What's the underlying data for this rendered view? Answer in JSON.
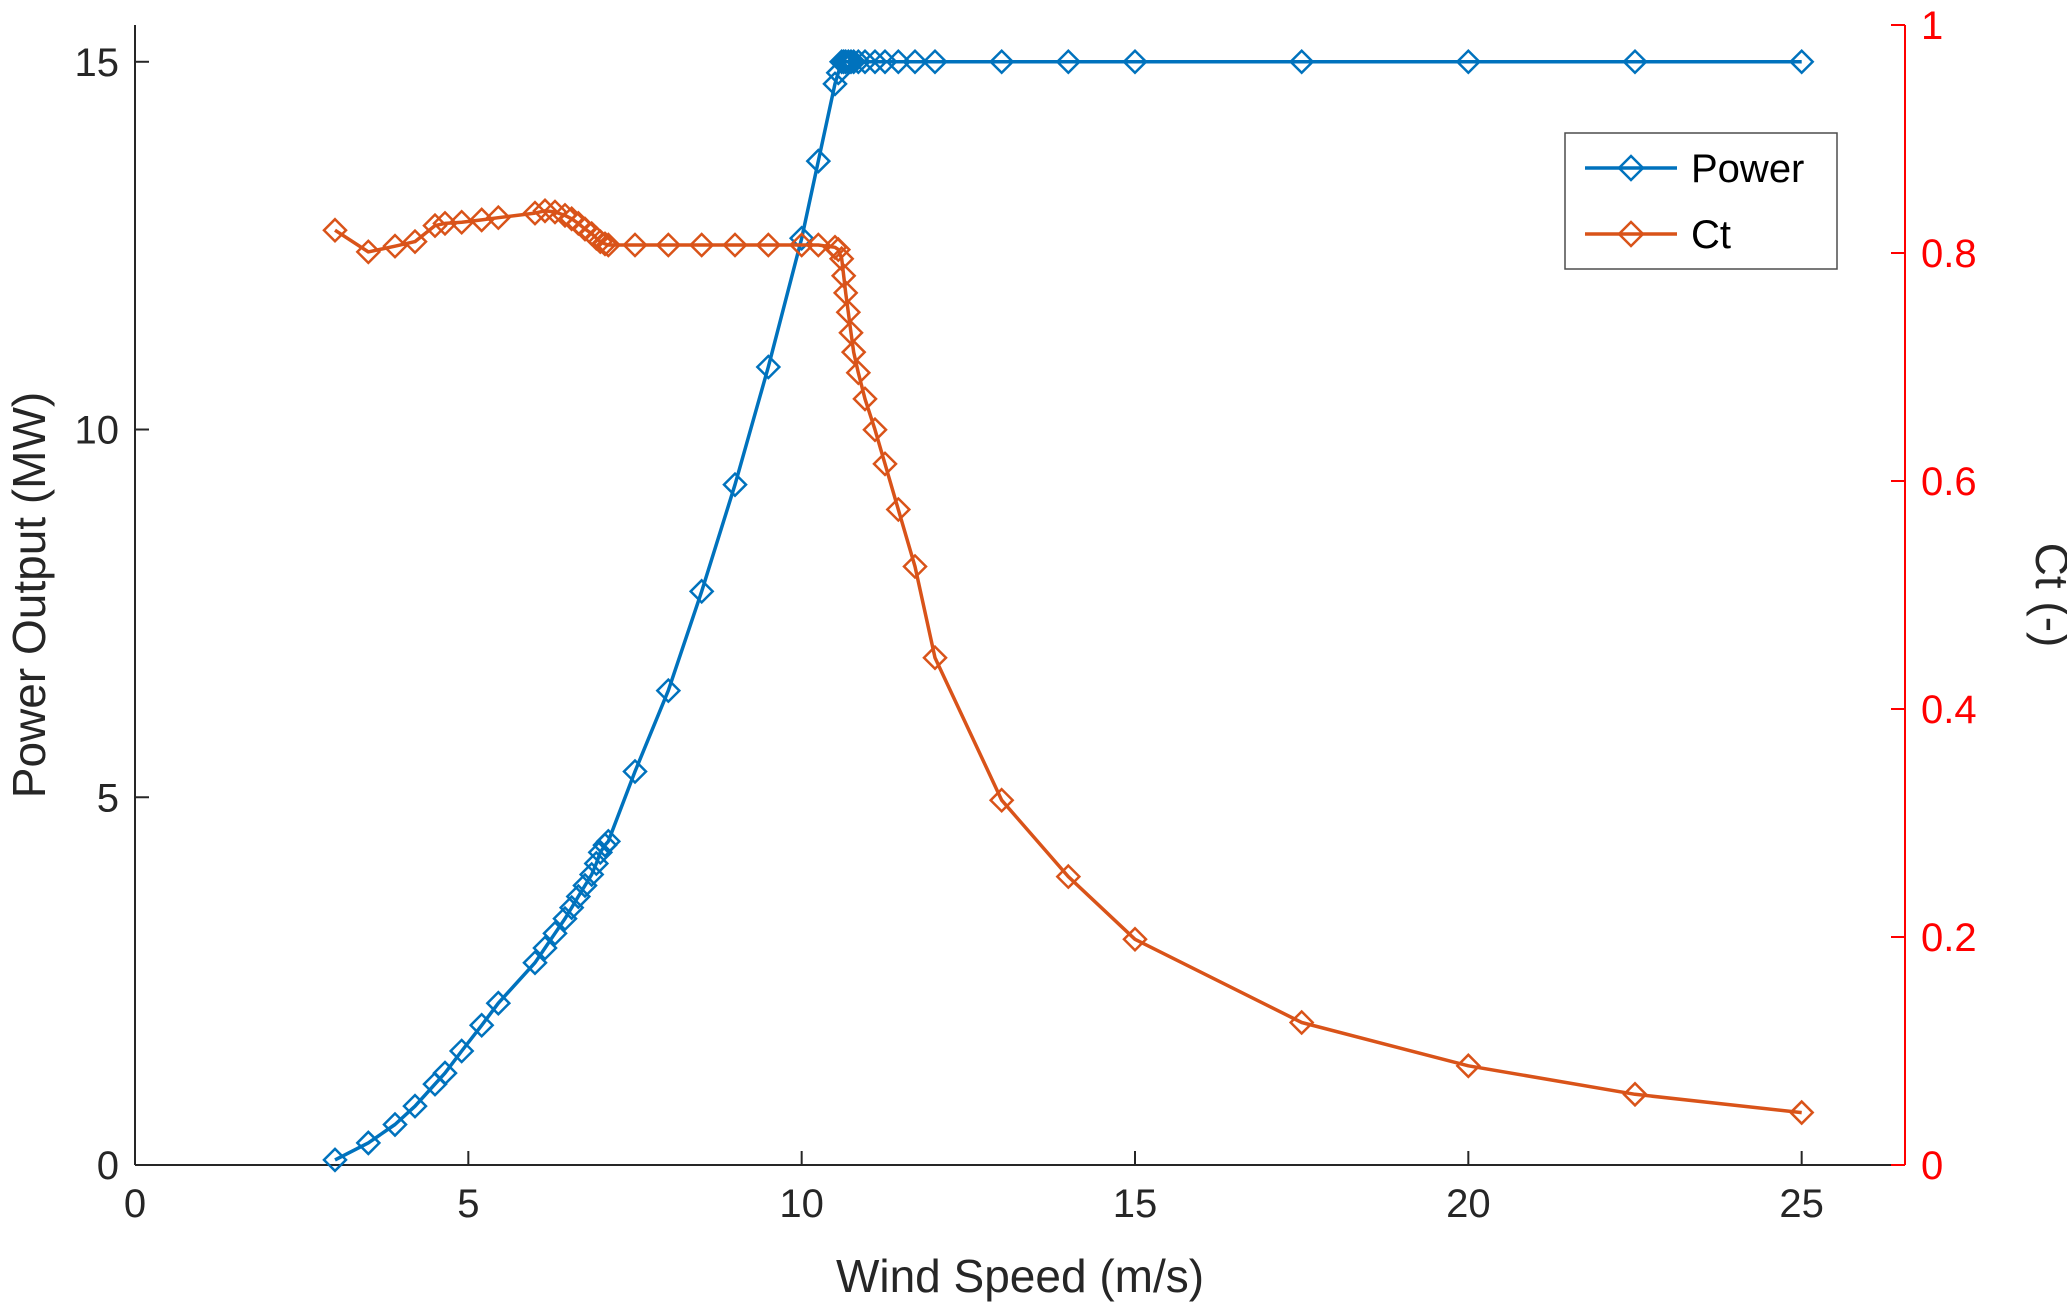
{
  "figure": {
    "background": "#ffffff"
  },
  "chart_data": {
    "type": "line",
    "title": "",
    "xlabel": "Wind Speed (m/s)",
    "ylabel_left": "Power Output (MW)",
    "ylabel_right": "Ct (-)",
    "xlim": [
      0,
      26.55
    ],
    "ylim_left": [
      0,
      15.5
    ],
    "ylim_right": [
      0,
      1
    ],
    "xticks": [
      0,
      5,
      10,
      15,
      20,
      25
    ],
    "yticks_left": [
      0,
      5,
      10,
      15
    ],
    "yticks_right": [
      0,
      0.2,
      0.4,
      0.6,
      0.8,
      1
    ],
    "grid": false,
    "legend_position": "upper-right",
    "marker": "diamond",
    "x": [
      3.0,
      3.5,
      3.9,
      4.2,
      4.5,
      4.65,
      4.9,
      5.2,
      5.45,
      6.0,
      6.15,
      6.3,
      6.45,
      6.55,
      6.65,
      6.75,
      6.85,
      6.92,
      6.98,
      7.05,
      7.1,
      7.5,
      8.0,
      8.5,
      9.0,
      9.5,
      10.0,
      10.25,
      10.5,
      10.55,
      10.6,
      10.63,
      10.66,
      10.7,
      10.74,
      10.78,
      10.85,
      10.95,
      11.1,
      11.25,
      11.45,
      11.7,
      12.0,
      13.0,
      14.0,
      15.0,
      17.5,
      20.0,
      22.5,
      25.0
    ],
    "series": [
      {
        "name": "Power",
        "axis": "left",
        "color": "#0072BD",
        "values": [
          0.07,
          0.3,
          0.55,
          0.8,
          1.1,
          1.25,
          1.55,
          1.9,
          2.2,
          2.75,
          2.95,
          3.15,
          3.35,
          3.5,
          3.65,
          3.8,
          3.95,
          4.1,
          4.25,
          4.35,
          4.4,
          5.35,
          6.45,
          7.8,
          9.25,
          10.85,
          12.6,
          13.65,
          14.7,
          14.85,
          15.0,
          15.0,
          15.0,
          15.0,
          15.0,
          15.0,
          15.0,
          15.0,
          15.0,
          15.0,
          15.0,
          15.0,
          15.0,
          15.0,
          15.0,
          15.0,
          15.0,
          15.0,
          15.0,
          15.0
        ]
      },
      {
        "name": "Ct",
        "axis": "right",
        "color": "#D95319",
        "values": [
          0.82,
          0.801,
          0.806,
          0.81,
          0.824,
          0.826,
          0.827,
          0.829,
          0.831,
          0.835,
          0.837,
          0.836,
          0.833,
          0.83,
          0.826,
          0.821,
          0.817,
          0.813,
          0.81,
          0.808,
          0.807,
          0.807,
          0.807,
          0.807,
          0.807,
          0.807,
          0.807,
          0.807,
          0.805,
          0.803,
          0.795,
          0.78,
          0.765,
          0.748,
          0.73,
          0.713,
          0.695,
          0.672,
          0.645,
          0.615,
          0.575,
          0.525,
          0.445,
          0.32,
          0.253,
          0.198,
          0.125,
          0.087,
          0.062,
          0.046
        ]
      }
    ],
    "colors": {
      "left_axis": "#262626",
      "right_axis": "#FF0000"
    },
    "legend": {
      "entries": [
        "Power",
        "Ct"
      ]
    }
  }
}
